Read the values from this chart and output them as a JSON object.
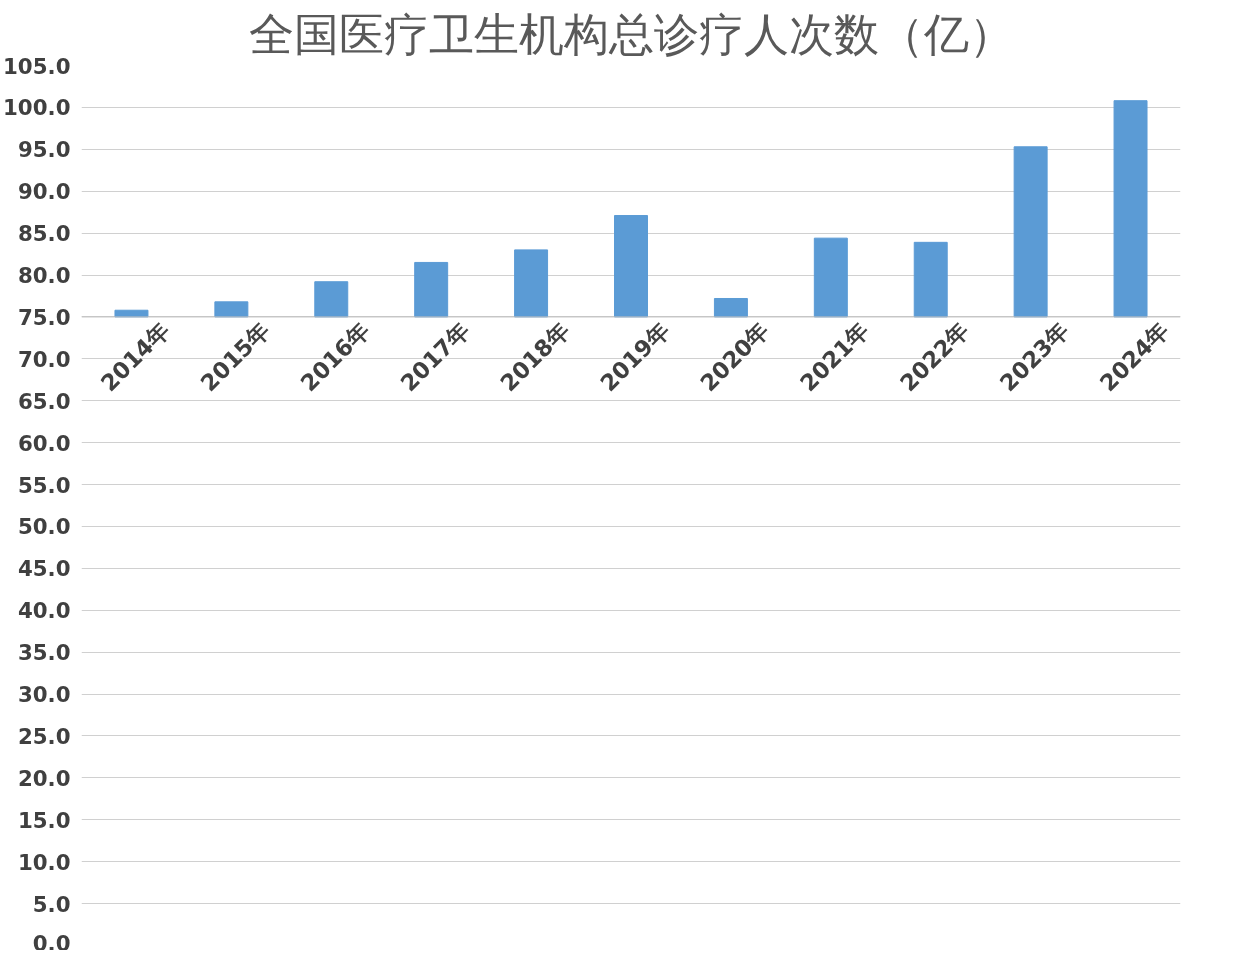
{
  "chart_data": {
    "type": "bar",
    "title": "全国医疗卫生机构总诊疗人次数（亿）",
    "categories": [
      "2014年",
      "2015年",
      "2016年",
      "2017年",
      "2018年",
      "2019年",
      "2020年",
      "2021年",
      "2022年",
      "2023年",
      "2024年"
    ],
    "base": [
      75,
      75,
      75,
      75,
      75,
      75,
      75,
      75,
      75,
      75,
      75
    ],
    "values": [
      0.8,
      1.8,
      4.2,
      6.5,
      8.0,
      12.1,
      2.2,
      9.4,
      8.9,
      20.3,
      25.8
    ],
    "color": "#5b9bd5",
    "ylim": [
      0,
      105
    ],
    "yticks": [
      {
        "value": 0,
        "label": "0.0"
      },
      {
        "value": 5,
        "label": "5.0"
      },
      {
        "value": 10,
        "label": "10.0"
      },
      {
        "value": 15,
        "label": "15.0"
      },
      {
        "value": 20,
        "label": "20.0"
      },
      {
        "value": 25,
        "label": "25.0"
      },
      {
        "value": 30,
        "label": "30.0"
      },
      {
        "value": 35,
        "label": "35.0"
      },
      {
        "value": 40,
        "label": "40.0"
      },
      {
        "value": 45,
        "label": "45.0"
      },
      {
        "value": 50,
        "label": "50.0"
      },
      {
        "value": 55,
        "label": "55.0"
      },
      {
        "value": 60,
        "label": "60.0"
      },
      {
        "value": 65,
        "label": "65.0"
      },
      {
        "value": 70,
        "label": "70.0"
      },
      {
        "value": 75,
        "label": "75.0"
      },
      {
        "value": 80,
        "label": "80.0"
      },
      {
        "value": 85,
        "label": "85.0"
      },
      {
        "value": 90,
        "label": "90.0"
      },
      {
        "value": 95,
        "label": "95.0"
      },
      {
        "value": 100,
        "label": "100.0"
      },
      {
        "value": 105,
        "label": "105.0"
      }
    ],
    "grid": "y"
  }
}
